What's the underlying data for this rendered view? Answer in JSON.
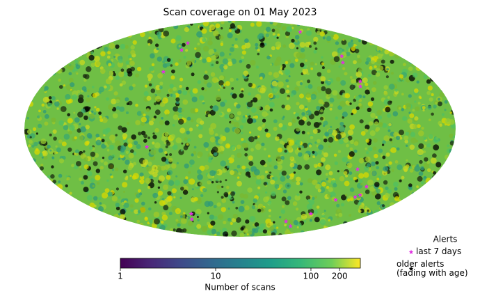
{
  "chart_data": {
    "type": "map",
    "projection": "mollweide",
    "title": "Scan coverage on 01 May 2023",
    "colorbar": {
      "label": "Number of scans",
      "log": true,
      "colormap": "viridis",
      "xlim": [
        1,
        330
      ],
      "xticks": [
        1,
        10,
        100,
        200
      ]
    },
    "legend_title": "Alerts",
    "series": [
      {
        "name": "last 7 days",
        "color": "#e030e0",
        "lon": [
          -71.6,
          -71.3,
          -75.3,
          114,
          115,
          108.7,
          111.8,
          109.3,
          -78.9,
          105.8,
          125,
          127,
          124,
          106,
          96,
          -65.9,
          -73.8,
          74.6,
          98
        ],
        "lat": [
          63,
          57,
          39.8,
          74,
          52,
          46.8,
          32.8,
          29.2,
          -12.3,
          -27.7,
          -40.3,
          -46.8,
          -48.3,
          -50.6,
          -62.4,
          -62.4,
          -67.5,
          -69.5,
          -74.6
        ]
      },
      {
        "name": "older alerts\n(fading with age)",
        "color": "#000000"
      }
    ]
  }
}
